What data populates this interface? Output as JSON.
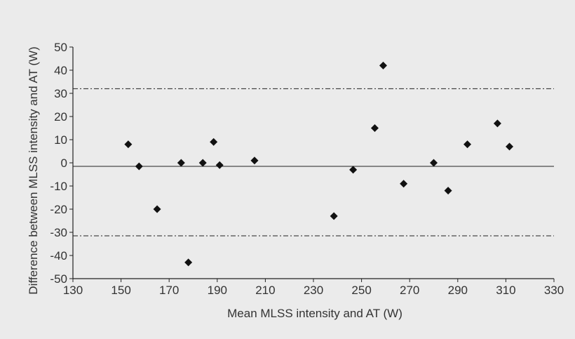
{
  "chart_data": {
    "type": "scatter",
    "title": "",
    "xlabel": "Mean MLSS intensity and AT (W)",
    "ylabel": "Difference between MLSS intensity and AT (W)",
    "xlim": [
      130,
      330
    ],
    "ylim": [
      -50,
      50
    ],
    "xticks": [
      130,
      150,
      170,
      190,
      210,
      230,
      250,
      270,
      290,
      310,
      330
    ],
    "yticks": [
      50,
      40,
      30,
      20,
      10,
      0,
      -10,
      -20,
      -30,
      -40,
      -50
    ],
    "grid": false,
    "legend": "none",
    "marker": "diamond",
    "colors": {
      "background": "#ebebeb",
      "marker": "#111111",
      "axis": "#222222",
      "text": "#333333"
    },
    "reference_lines": {
      "mean_difference": -1.5,
      "upper_limit": 32,
      "lower_limit": -31.5
    },
    "series": [
      {
        "x": [
          153,
          157.5,
          165,
          175,
          178,
          184,
          188.5,
          191,
          205.5,
          238.5,
          246.5,
          255.5,
          259,
          267.5,
          280,
          286,
          294,
          306.5,
          311.5
        ],
        "y": [
          8,
          -1.5,
          -20,
          0,
          -43,
          0,
          9,
          -1,
          1,
          -23,
          -3,
          15,
          42,
          -9,
          0,
          -12,
          8,
          17,
          7
        ]
      }
    ]
  }
}
